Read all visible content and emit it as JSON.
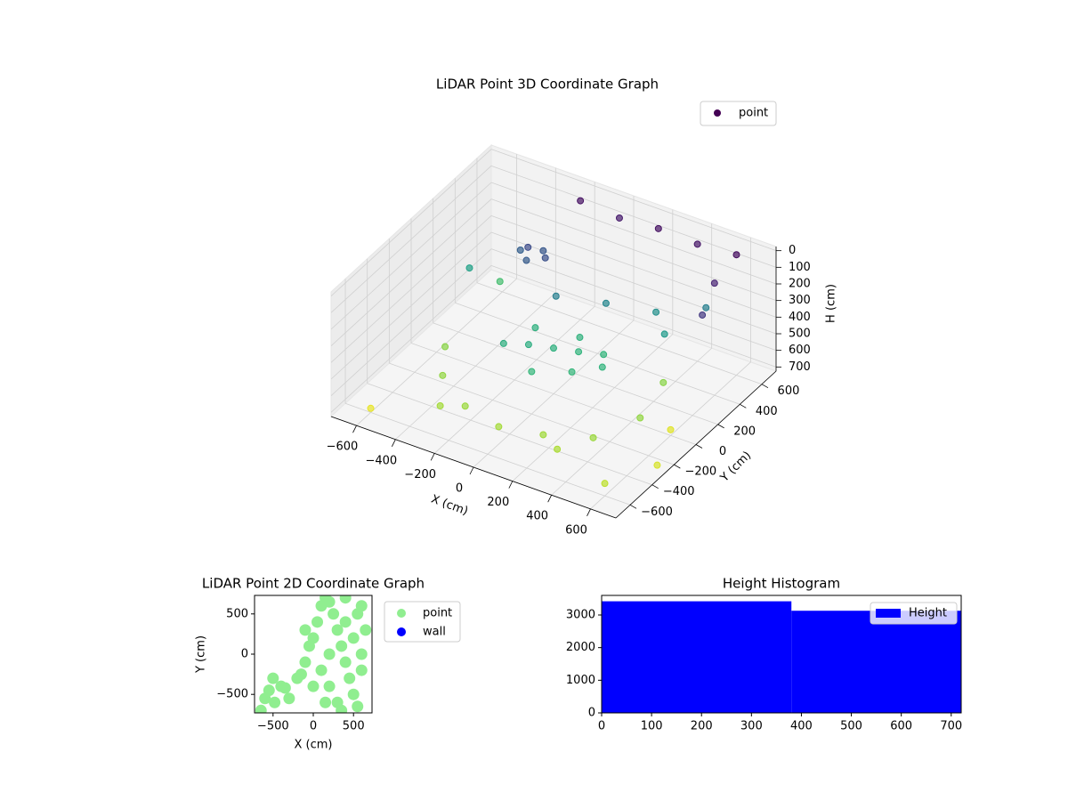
{
  "chart_data": [
    {
      "type": "scatter3d",
      "title": "LiDAR Point 3D Coordinate Graph",
      "xlabel": "X (cm)",
      "ylabel": "Y (cm)",
      "zlabel": "H (cm)",
      "xlim": [
        -730,
        730
      ],
      "ylim": [
        -730,
        730
      ],
      "zlim": [
        725,
        -25
      ],
      "xticks": [
        {
          "value": -600,
          "label": "−600"
        },
        {
          "value": -400,
          "label": "−400"
        },
        {
          "value": -200,
          "label": "−200"
        },
        0,
        200,
        400,
        600
      ],
      "yticks": [
        {
          "value": -600,
          "label": "−600"
        },
        {
          "value": -400,
          "label": "−400"
        },
        {
          "value": -200,
          "label": "−200"
        },
        0,
        200,
        400,
        600
      ],
      "zticks": [
        0,
        100,
        200,
        300,
        400,
        500,
        600,
        700
      ],
      "colormap": "viridis",
      "legend": "upper right",
      "grid": true,
      "series": [
        {
          "name": "point",
          "color": "#440154",
          "x": [
            -300,
            -250,
            -200,
            -350,
            -280,
            0,
            100,
            -100,
            150,
            -150,
            50,
            200,
            -200,
            0,
            250,
            -400,
            -200,
            0,
            200,
            400,
            500,
            -500,
            300,
            -300,
            450,
            600,
            400,
            200,
            0,
            -200,
            600,
            650,
            500,
            300,
            400,
            -100,
            100,
            -500,
            600,
            -600,
            700,
            600,
            -600
          ],
          "y": [
            300,
            350,
            280,
            320,
            250,
            0,
            50,
            -50,
            -100,
            100,
            150,
            100,
            -100,
            -200,
            0,
            -300,
            -450,
            -500,
            -450,
            -350,
            -100,
            -100,
            -500,
            -500,
            200,
            600,
            600,
            600,
            600,
            600,
            400,
            200,
            500,
            400,
            300,
            200,
            300,
            400,
            -600,
            -600,
            -300,
            0,
            300
          ],
          "z": [
            150,
            180,
            160,
            200,
            190,
            450,
            460,
            440,
            470,
            450,
            455,
            465,
            445,
            470,
            460,
            600,
            610,
            620,
            615,
            610,
            600,
            590,
            630,
            620,
            590,
            0,
            20,
            10,
            30,
            10,
            50,
            100,
            300,
            350,
            380,
            300,
            320,
            500,
            650,
            700,
            680,
            690,
            400
          ]
        }
      ]
    },
    {
      "type": "scatter",
      "title": "LiDAR Point 2D Coordinate Graph",
      "xlabel": "X (cm)",
      "ylabel": "Y (cm)",
      "xlim": [
        -730,
        730
      ],
      "ylim": [
        -730,
        730
      ],
      "xticks": [
        {
          "value": -500,
          "label": "−500"
        },
        0,
        500
      ],
      "yticks": [
        {
          "value": -500,
          "label": "−500"
        },
        0,
        500
      ],
      "legend": "outside right",
      "series": [
        {
          "name": "point",
          "color": "#90ee90",
          "x": [
            -650,
            -600,
            -550,
            -480,
            -400,
            -300,
            -200,
            -150,
            -100,
            -50,
            0,
            50,
            100,
            150,
            200,
            250,
            300,
            350,
            400,
            450,
            500,
            550,
            600,
            650,
            100,
            200,
            300,
            400,
            500,
            600,
            0,
            -100,
            200,
            400,
            600,
            -500,
            -350,
            150,
            350,
            550
          ],
          "y": [
            -700,
            -550,
            -450,
            -600,
            -400,
            -550,
            -300,
            -250,
            -100,
            100,
            200,
            400,
            600,
            700,
            650,
            500,
            300,
            100,
            -100,
            -300,
            -500,
            -650,
            600,
            300,
            -200,
            -400,
            -600,
            700,
            200,
            -200,
            -400,
            300,
            0,
            400,
            0,
            -300,
            -420,
            -600,
            -700,
            500
          ]
        },
        {
          "name": "wall",
          "color": "#0000ff",
          "x": [],
          "y": []
        }
      ]
    },
    {
      "type": "histogram",
      "title": "Height Histogram",
      "bins": [
        0,
        380,
        720
      ],
      "series": [
        {
          "name": "Height",
          "color": "#0000ff",
          "values": [
            3420,
            3130
          ]
        }
      ],
      "xlim": [
        0,
        720
      ],
      "ylim": [
        0,
        3600
      ],
      "xticks": [
        0,
        100,
        200,
        300,
        400,
        500,
        600,
        700
      ],
      "yticks": [
        0,
        1000,
        2000,
        3000
      ],
      "legend": "upper right"
    }
  ]
}
